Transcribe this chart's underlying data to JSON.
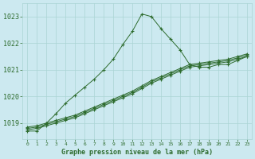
{
  "background_color": "#cce9f0",
  "grid_color": "#aad4d4",
  "line_color": "#2d6b2d",
  "title": "Graphe pression niveau de la mer (hPa)",
  "ylabel_ticks": [
    1019,
    1020,
    1021,
    1022,
    1023
  ],
  "xlim": [
    -0.5,
    23.5
  ],
  "ylim": [
    1018.4,
    1023.5
  ],
  "series": {
    "main": {
      "x": [
        0,
        1,
        2,
        3,
        4,
        5,
        6,
        7,
        8,
        9,
        10,
        11,
        12,
        13,
        14,
        15,
        16,
        17,
        18,
        19,
        20,
        21,
        22,
        23
      ],
      "y": [
        1018.7,
        1018.7,
        1019.0,
        1019.35,
        1019.75,
        1020.05,
        1020.35,
        1020.65,
        1021.0,
        1021.4,
        1021.95,
        1022.45,
        1023.1,
        1023.0,
        1022.55,
        1022.15,
        1021.75,
        1021.2,
        1021.1,
        1021.1,
        1021.2,
        1021.2,
        1021.35,
        1021.5
      ]
    },
    "line2": {
      "x": [
        0,
        1,
        2,
        3,
        4,
        5,
        6,
        7,
        8,
        9,
        10,
        11,
        12,
        13,
        14,
        15,
        16,
        17,
        18,
        19,
        20,
        21,
        22,
        23
      ],
      "y": [
        1018.75,
        1018.8,
        1018.9,
        1019.0,
        1019.1,
        1019.2,
        1019.35,
        1019.5,
        1019.65,
        1019.8,
        1019.95,
        1020.1,
        1020.3,
        1020.5,
        1020.65,
        1020.8,
        1020.95,
        1021.1,
        1021.15,
        1021.2,
        1021.25,
        1021.3,
        1021.4,
        1021.5
      ]
    },
    "line3": {
      "x": [
        0,
        1,
        2,
        3,
        4,
        5,
        6,
        7,
        8,
        9,
        10,
        11,
        12,
        13,
        14,
        15,
        16,
        17,
        18,
        19,
        20,
        21,
        22,
        23
      ],
      "y": [
        1018.8,
        1018.85,
        1018.95,
        1019.05,
        1019.15,
        1019.25,
        1019.4,
        1019.55,
        1019.7,
        1019.85,
        1020.0,
        1020.15,
        1020.35,
        1020.55,
        1020.7,
        1020.85,
        1021.0,
        1021.15,
        1021.2,
        1021.25,
        1021.3,
        1021.35,
        1021.45,
        1021.55
      ]
    },
    "line4": {
      "x": [
        0,
        1,
        2,
        3,
        4,
        5,
        6,
        7,
        8,
        9,
        10,
        11,
        12,
        13,
        14,
        15,
        16,
        17,
        18,
        19,
        20,
        21,
        22,
        23
      ],
      "y": [
        1018.85,
        1018.9,
        1019.0,
        1019.1,
        1019.2,
        1019.3,
        1019.45,
        1019.6,
        1019.75,
        1019.9,
        1020.05,
        1020.2,
        1020.4,
        1020.6,
        1020.75,
        1020.9,
        1021.05,
        1021.2,
        1021.25,
        1021.3,
        1021.35,
        1021.4,
        1021.5,
        1021.6
      ]
    }
  }
}
